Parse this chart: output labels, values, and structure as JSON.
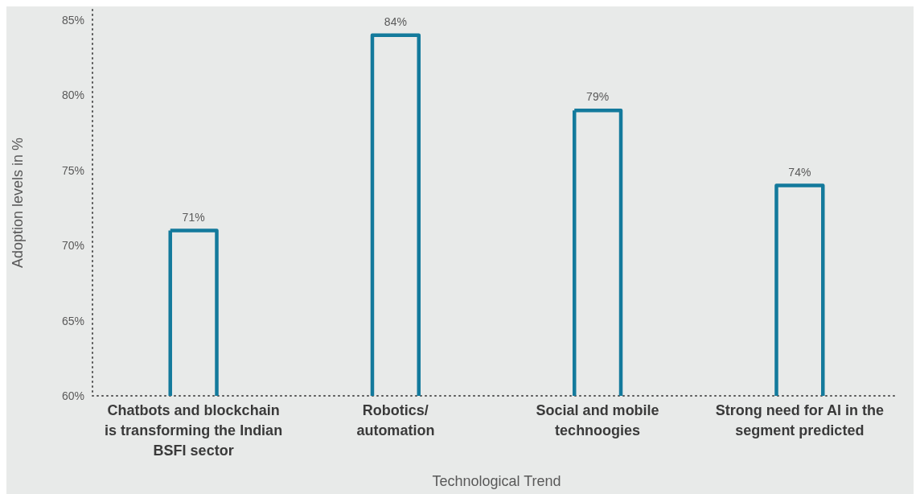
{
  "chart_data": {
    "type": "bar",
    "categories": [
      "Chatbots and blockchain\nis transforming the Indian\nBSFI sector",
      "Robotics/\nautomation",
      "Social and mobile\ntechnoogies",
      "Strong need for AI in the\nsegment predicted"
    ],
    "values": [
      71,
      84,
      79,
      74
    ],
    "value_labels": [
      "71%",
      "84%",
      "79%",
      "74%"
    ],
    "color": "#137a9c",
    "ylim": [
      60,
      85.7
    ],
    "yticks": [
      {
        "value": 60,
        "label": "60%"
      },
      {
        "value": 65,
        "label": "65%"
      },
      {
        "value": 70,
        "label": "70%"
      },
      {
        "value": 75,
        "label": "75%"
      },
      {
        "value": 80,
        "label": "80%"
      },
      {
        "value": 85,
        "label": "85%"
      }
    ],
    "xlabel": "Technological Trend",
    "ylabel": "Adoption levels in %"
  }
}
